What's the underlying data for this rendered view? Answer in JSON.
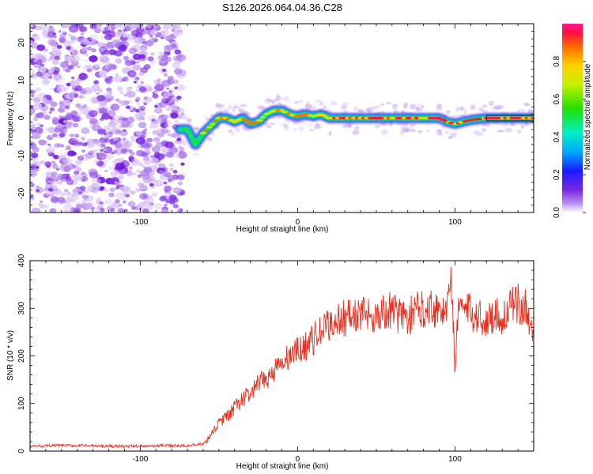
{
  "chart_data": [
    {
      "type": "heatmap",
      "title": "S126.2026.064.04.36.C28",
      "xlabel": "Height of straight line (km)",
      "ylabel": "Frequency (Hz)",
      "xlim": [
        -170,
        150
      ],
      "ylim": [
        -25,
        25
      ],
      "xticks": [
        -100,
        0,
        100
      ],
      "yticks": [
        -20,
        -10,
        0,
        10,
        20
      ],
      "colorbar": {
        "label": "Normalized spectral amplitude",
        "range": [
          0,
          1
        ],
        "ticks": [
          "0.0",
          "0.2",
          "0.4",
          "0.6",
          "0.8"
        ]
      },
      "ridge": {
        "x": [
          -75,
          -70,
          -65,
          -60,
          -55,
          -50,
          -45,
          -40,
          -35,
          -30,
          -25,
          -20,
          -15,
          -10,
          -5,
          0,
          5,
          10,
          15,
          20,
          30,
          40,
          50,
          60,
          70,
          80,
          90,
          95,
          100,
          105,
          110,
          120,
          130,
          140,
          150
        ],
        "frequency": [
          -3,
          -3,
          -7,
          -4,
          -2,
          0,
          0,
          -1,
          0,
          -1.5,
          -1,
          1,
          2,
          2,
          1,
          0.5,
          1,
          0.5,
          1,
          0,
          0,
          0,
          0,
          0,
          0,
          0,
          0,
          -1,
          -1.5,
          -1,
          -0.5,
          0,
          0,
          0,
          0
        ],
        "noise_region_xmax": -77
      }
    },
    {
      "type": "line",
      "xlabel": "Height of straight line (km)",
      "ylabel": "SNR (10 * v/v)",
      "xlim": [
        -170,
        150
      ],
      "ylim": [
        0,
        400
      ],
      "xticks": [
        -100,
        0,
        100
      ],
      "yticks": [
        0,
        100,
        200,
        300,
        400
      ],
      "color": "#e83020",
      "x": [
        -170,
        -150,
        -130,
        -110,
        -90,
        -70,
        -60,
        -55,
        -50,
        -45,
        -40,
        -35,
        -30,
        -25,
        -20,
        -15,
        -10,
        -5,
        0,
        5,
        10,
        15,
        20,
        25,
        30,
        35,
        40,
        45,
        50,
        55,
        60,
        65,
        70,
        75,
        80,
        85,
        90,
        95,
        98,
        100,
        102,
        105,
        110,
        115,
        120,
        125,
        130,
        135,
        140,
        145,
        150
      ],
      "y": [
        10,
        12,
        11,
        10,
        11,
        12,
        15,
        30,
        60,
        70,
        90,
        110,
        120,
        140,
        150,
        170,
        180,
        200,
        210,
        220,
        235,
        250,
        265,
        275,
        280,
        285,
        285,
        290,
        285,
        290,
        295,
        285,
        280,
        295,
        300,
        305,
        295,
        300,
        360,
        150,
        320,
        300,
        290,
        285,
        270,
        290,
        280,
        300,
        310,
        300,
        240
      ]
    }
  ]
}
